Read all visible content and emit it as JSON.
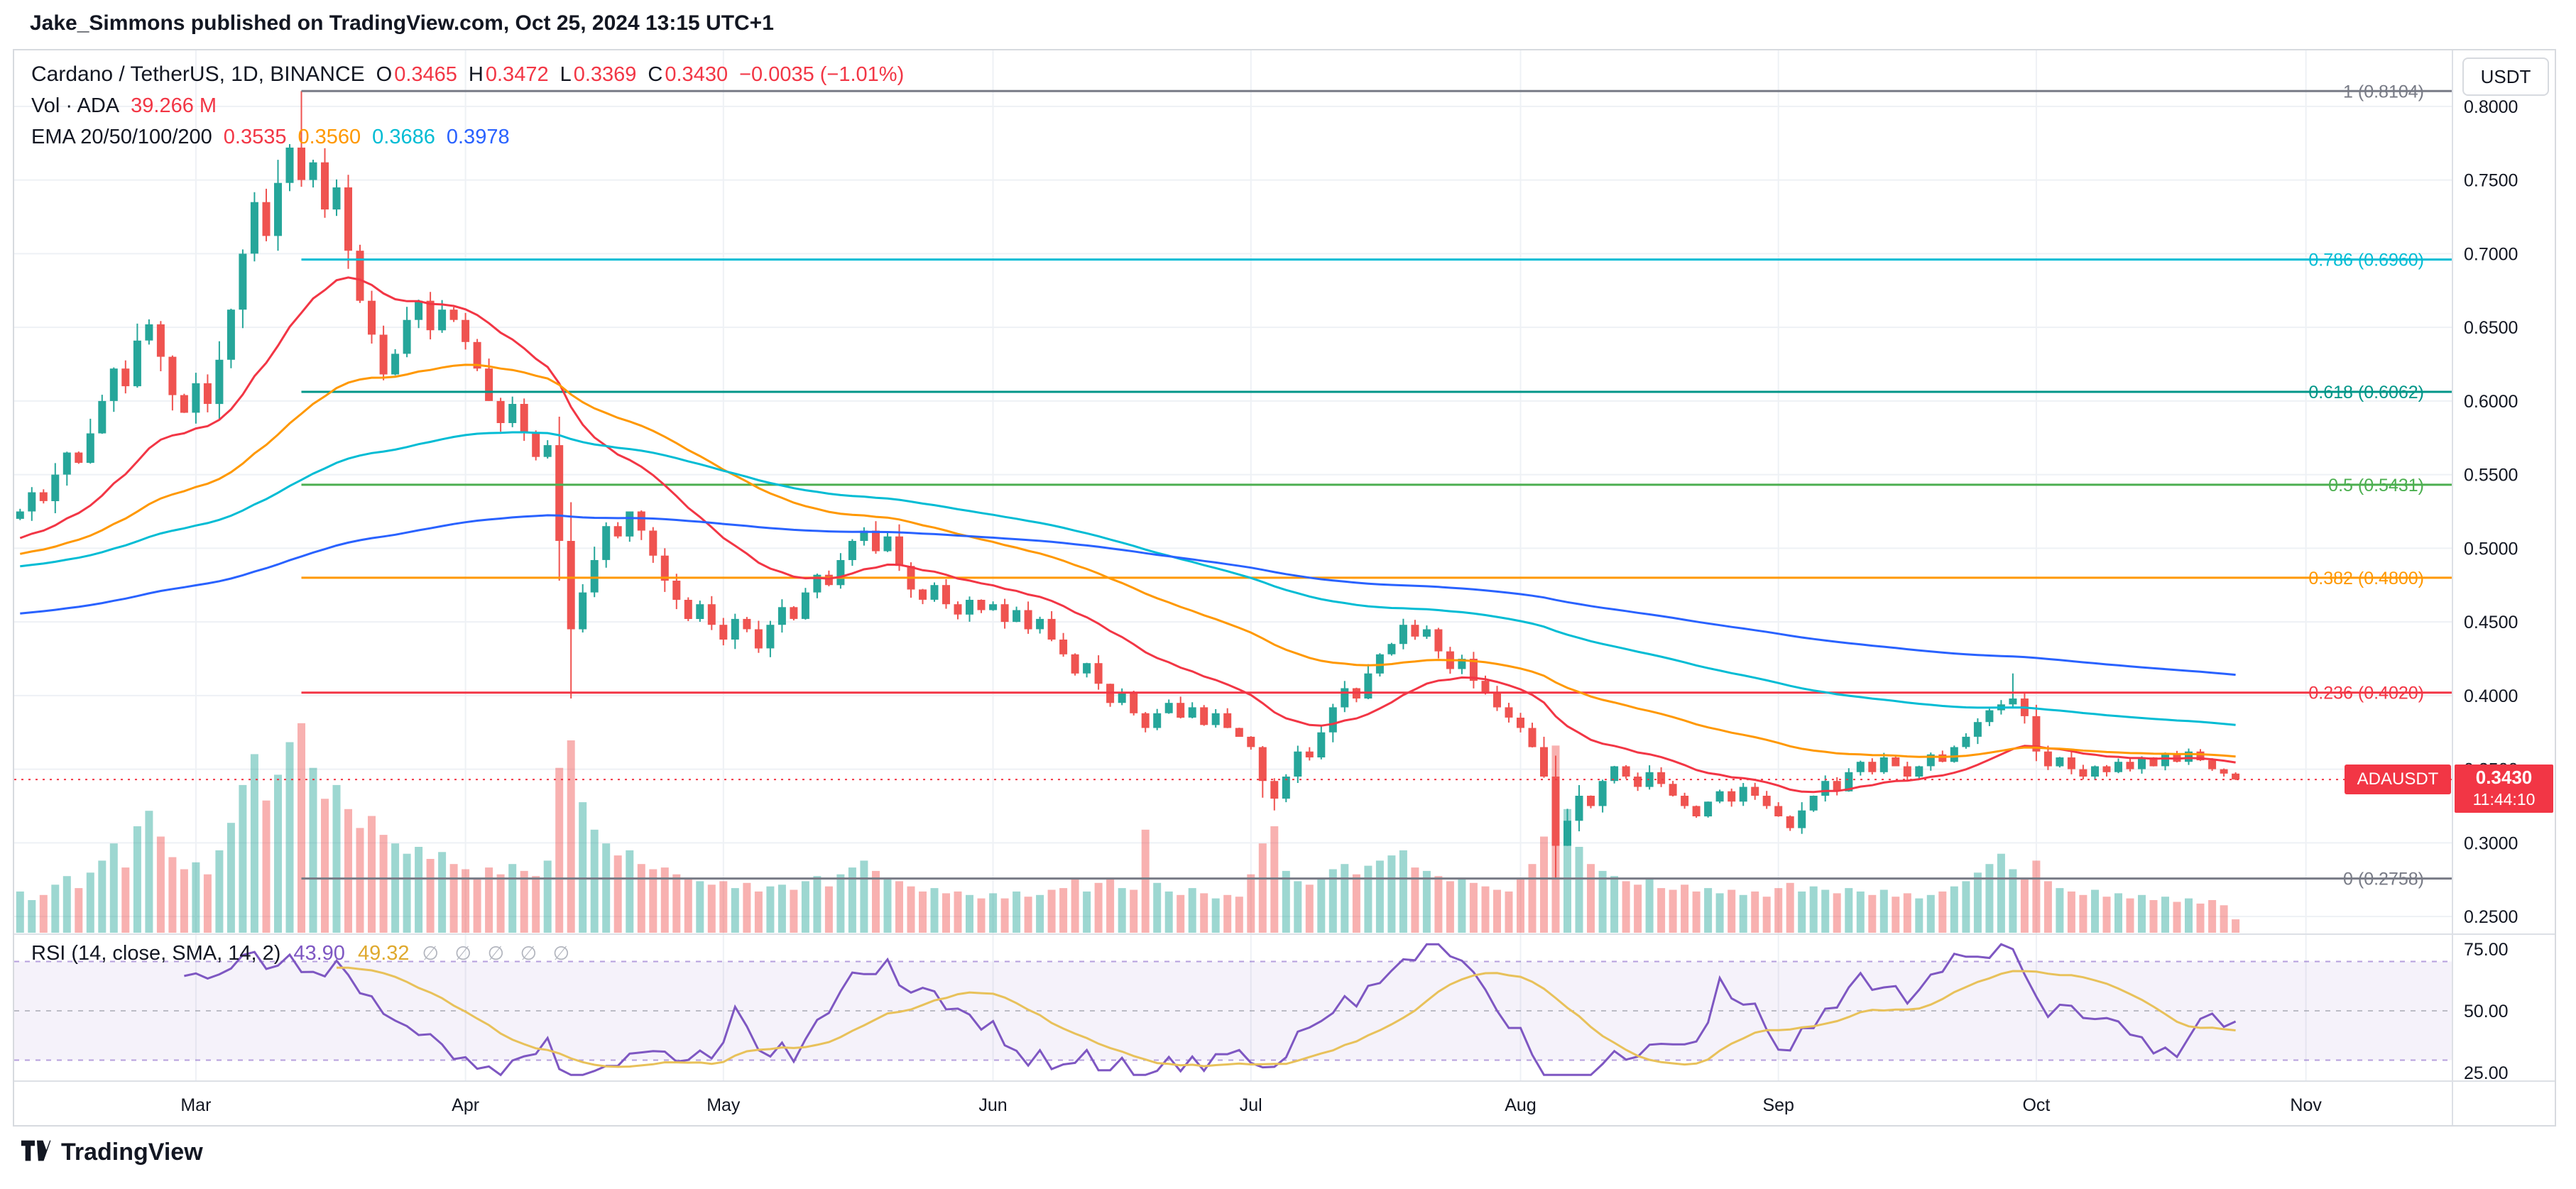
{
  "header": {
    "byline": "Jake_Simmons published on TradingView.com, Oct 25, 2024 13:15 UTC+1"
  },
  "toolbar": {
    "currency_button": "USDT"
  },
  "legend": {
    "symbol_title": "Cardano / TetherUS, 1D, BINANCE",
    "ohlc": [
      {
        "label": "O",
        "value": "0.3465"
      },
      {
        "label": "H",
        "value": "0.3472"
      },
      {
        "label": "L",
        "value": "0.3369"
      },
      {
        "label": "C",
        "value": "0.3430"
      }
    ],
    "change": "−0.0035 (−1.01%)",
    "volume_label": "Vol · ADA",
    "volume_value": "39.266 M",
    "ema_label": "EMA 20/50/100/200",
    "ema_values": [
      {
        "value": "0.3535",
        "color": "#f23645"
      },
      {
        "value": "0.3560",
        "color": "#ff9800"
      },
      {
        "value": "0.3686",
        "color": "#00bcd4"
      },
      {
        "value": "0.3978",
        "color": "#2962ff"
      }
    ]
  },
  "rsi_legend": {
    "title": "RSI (14, close, SMA, 14, 2)",
    "values": [
      {
        "value": "43.90",
        "color": "#7e57c2"
      },
      {
        "value": "49.32",
        "color": "#dfa92e"
      }
    ],
    "hidden_markers": "∅   ∅   ∅   ∅   ∅"
  },
  "price_badge": {
    "symbol": "ADAUSDT",
    "price": "0.3430",
    "countdown": "11:44:10",
    "color": "#f23645"
  },
  "footer": {
    "brand": "TradingView"
  },
  "chart_data": {
    "type": "candlestick",
    "title": "Cardano / TetherUS, 1D, BINANCE",
    "symbol": "ADAUSDT",
    "interval": "1D",
    "exchange": "BINANCE",
    "last_price": 0.343,
    "x_axis": {
      "slots": 208,
      "months": [
        {
          "label": "Mar",
          "i": 15
        },
        {
          "label": "Apr",
          "i": 38
        },
        {
          "label": "May",
          "i": 60
        },
        {
          "label": "Jun",
          "i": 83
        },
        {
          "label": "Jul",
          "i": 105
        },
        {
          "label": "Aug",
          "i": 128
        },
        {
          "label": "Sep",
          "i": 150
        },
        {
          "label": "Oct",
          "i": 172
        },
        {
          "label": "Nov",
          "i": 195
        }
      ]
    },
    "y_axis": {
      "price_top": 0.838,
      "price_bottom": 0.238,
      "ticks": [
        "0.8000",
        "0.7500",
        "0.7000",
        "0.6500",
        "0.6000",
        "0.5500",
        "0.5000",
        "0.4500",
        "0.4000",
        "0.3500",
        "0.3000",
        "0.2500"
      ]
    },
    "fib_anchor_i": 24,
    "fib_levels": [
      {
        "label": "1 (0.8104)",
        "price": 0.8104,
        "color": "#787b86"
      },
      {
        "label": "0.786 (0.6960)",
        "price": 0.696,
        "color": "#00bcd4"
      },
      {
        "label": "0.618 (0.6062)",
        "price": 0.6062,
        "color": "#009688"
      },
      {
        "label": "0.5 (0.5431)",
        "price": 0.5431,
        "color": "#4caf50"
      },
      {
        "label": "0.382 (0.4800)",
        "price": 0.48,
        "color": "#ff9800"
      },
      {
        "label": "0.236 (0.4020)",
        "price": 0.402,
        "color": "#f23645"
      },
      {
        "label": "0 (0.2758)",
        "price": 0.2758,
        "color": "#787b86"
      }
    ],
    "candle_colors": {
      "up": "#26a69a",
      "down": "#ef5350"
    },
    "volume_colors": {
      "up": "rgba(38,166,154,0.45)",
      "down": "rgba(239,83,80,0.45)"
    },
    "candles": {
      "first_open": 0.52,
      "closes": [
        0.525,
        0.538,
        0.532,
        0.55,
        0.565,
        0.558,
        0.578,
        0.6,
        0.622,
        0.61,
        0.641,
        0.652,
        0.63,
        0.604,
        0.592,
        0.612,
        0.598,
        0.628,
        0.662,
        0.7,
        0.735,
        0.712,
        0.748,
        0.772,
        0.75,
        0.762,
        0.73,
        0.745,
        0.702,
        0.668,
        0.645,
        0.618,
        0.632,
        0.655,
        0.668,
        0.648,
        0.662,
        0.655,
        0.64,
        0.622,
        0.6,
        0.585,
        0.598,
        0.578,
        0.562,
        0.57,
        0.505,
        0.445,
        0.47,
        0.492,
        0.515,
        0.508,
        0.525,
        0.512,
        0.495,
        0.478,
        0.465,
        0.452,
        0.462,
        0.448,
        0.438,
        0.452,
        0.445,
        0.432,
        0.448,
        0.46,
        0.452,
        0.47,
        0.482,
        0.475,
        0.492,
        0.505,
        0.512,
        0.498,
        0.508,
        0.488,
        0.472,
        0.465,
        0.475,
        0.462,
        0.455,
        0.465,
        0.458,
        0.462,
        0.45,
        0.458,
        0.445,
        0.452,
        0.438,
        0.428,
        0.415,
        0.422,
        0.408,
        0.395,
        0.402,
        0.388,
        0.378,
        0.388,
        0.395,
        0.385,
        0.392,
        0.38,
        0.388,
        0.378,
        0.372,
        0.365,
        0.342,
        0.33,
        0.345,
        0.362,
        0.358,
        0.375,
        0.392,
        0.405,
        0.398,
        0.415,
        0.428,
        0.435,
        0.448,
        0.44,
        0.445,
        0.43,
        0.418,
        0.425,
        0.41,
        0.402,
        0.392,
        0.385,
        0.378,
        0.365,
        0.345,
        0.298,
        0.315,
        0.332,
        0.325,
        0.342,
        0.352,
        0.345,
        0.338,
        0.348,
        0.34,
        0.332,
        0.325,
        0.318,
        0.328,
        0.335,
        0.328,
        0.338,
        0.332,
        0.325,
        0.318,
        0.31,
        0.322,
        0.332,
        0.342,
        0.335,
        0.348,
        0.355,
        0.348,
        0.358,
        0.352,
        0.345,
        0.352,
        0.36,
        0.355,
        0.365,
        0.372,
        0.382,
        0.39,
        0.394,
        0.398,
        0.386,
        0.362,
        0.352,
        0.358,
        0.35,
        0.345,
        0.352,
        0.348,
        0.355,
        0.35,
        0.358,
        0.352,
        0.36,
        0.355,
        0.362,
        0.356,
        0.35,
        0.347,
        0.343
      ],
      "volumes_m": [
        120,
        95,
        110,
        140,
        165,
        130,
        175,
        210,
        260,
        190,
        310,
        355,
        280,
        220,
        185,
        205,
        170,
        240,
        320,
        430,
        520,
        385,
        460,
        555,
        610,
        480,
        390,
        430,
        360,
        305,
        340,
        285,
        260,
        230,
        250,
        215,
        235,
        200,
        185,
        160,
        190,
        170,
        200,
        180,
        165,
        210,
        480,
        560,
        380,
        300,
        260,
        225,
        240,
        200,
        185,
        190,
        170,
        160,
        150,
        140,
        150,
        130,
        145,
        120,
        135,
        140,
        125,
        150,
        165,
        135,
        170,
        190,
        210,
        180,
        160,
        150,
        135,
        120,
        130,
        115,
        120,
        110,
        100,
        115,
        100,
        120,
        105,
        110,
        125,
        130,
        155,
        120,
        145,
        160,
        130,
        125,
        300,
        145,
        120,
        110,
        130,
        115,
        100,
        110,
        105,
        170,
        260,
        310,
        180,
        150,
        140,
        160,
        185,
        200,
        170,
        195,
        210,
        225,
        240,
        190,
        180,
        165,
        150,
        160,
        145,
        135,
        125,
        120,
        160,
        200,
        280,
        545,
        360,
        250,
        200,
        180,
        165,
        150,
        140,
        155,
        130,
        125,
        140,
        120,
        130,
        115,
        125,
        110,
        120,
        105,
        130,
        145,
        120,
        135,
        125,
        115,
        130,
        120,
        110,
        125,
        105,
        115,
        100,
        110,
        120,
        135,
        150,
        175,
        200,
        230,
        185,
        160,
        210,
        150,
        130,
        120,
        110,
        125,
        105,
        115,
        100,
        110,
        95,
        105,
        90,
        100,
        85,
        95,
        80,
        39
      ],
      "vol_axis_max_m": 620,
      "wick_overrides": [
        {
          "i": 24,
          "h": 0.8104
        },
        {
          "i": 46,
          "l": 0.478
        },
        {
          "i": 47,
          "l": 0.398
        },
        {
          "i": 107,
          "l": 0.322
        },
        {
          "i": 131,
          "l": 0.2758
        },
        {
          "i": 170,
          "h": 0.415
        }
      ]
    },
    "emas": {
      "periods": [
        20,
        50,
        100,
        200
      ],
      "seeds": [
        0.505,
        0.495,
        0.487,
        0.455
      ],
      "colors": [
        "#f23645",
        "#ff9800",
        "#00bcd4",
        "#2962ff"
      ]
    },
    "rsi": {
      "period": 14,
      "ma_period": 14,
      "band": [
        30,
        70
      ],
      "mid": 50,
      "axis_max": 80.5,
      "axis_min": 21.5,
      "axis_ticks": [
        "75.00",
        "50.00",
        "25.00"
      ],
      "line_color": "#7e57c2",
      "ma_color": "#e8c15a",
      "band_fill": "rgba(126,87,194,0.08)"
    }
  }
}
